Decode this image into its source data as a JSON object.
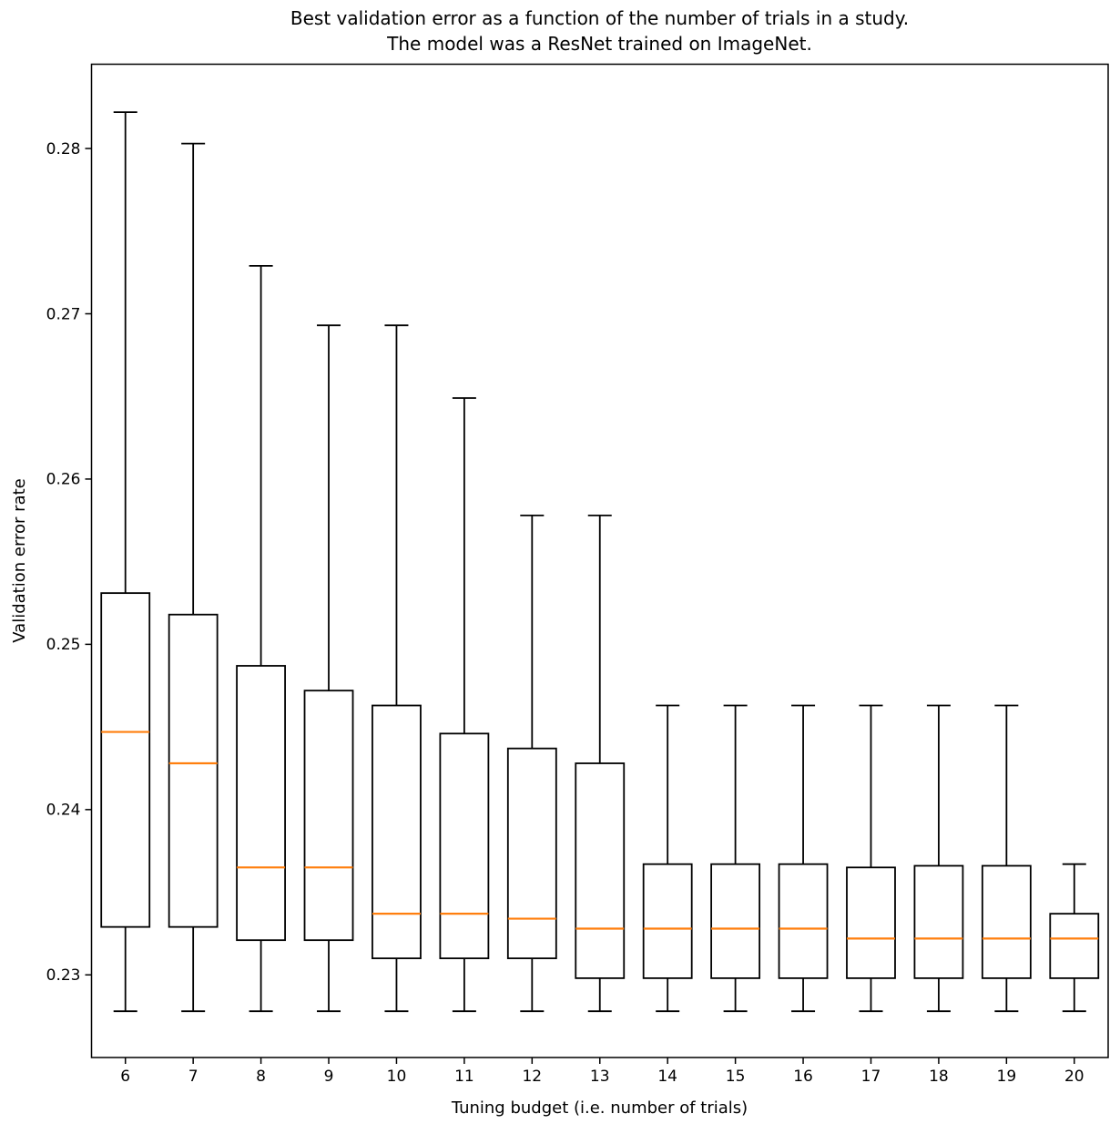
{
  "chart_data": {
    "type": "boxplot",
    "title_line1": "Best validation error as a function of the number of trials in a study.",
    "title_line2": "The model was a ResNet trained on ImageNet.",
    "xlabel": "Tuning budget (i.e. number of trials)",
    "ylabel": "Validation error rate",
    "categories": [
      "6",
      "7",
      "8",
      "9",
      "10",
      "11",
      "12",
      "13",
      "14",
      "15",
      "16",
      "17",
      "18",
      "19",
      "20"
    ],
    "yticks": [
      0.23,
      0.24,
      0.25,
      0.26,
      0.27,
      0.28
    ],
    "ylim": [
      0.225,
      0.2851
    ],
    "grid": false,
    "legend": "none",
    "colors": {
      "median": "#ff7f0e",
      "box_stroke": "#000000",
      "box_fill": "#ffffff",
      "spine": "#000000"
    },
    "boxes": [
      {
        "label": "6",
        "whislo": 0.2278,
        "q1": 0.2329,
        "med": 0.2447,
        "q3": 0.2531,
        "whishi": 0.2822
      },
      {
        "label": "7",
        "whislo": 0.2278,
        "q1": 0.2329,
        "med": 0.2428,
        "q3": 0.2518,
        "whishi": 0.2803
      },
      {
        "label": "8",
        "whislo": 0.2278,
        "q1": 0.2321,
        "med": 0.2365,
        "q3": 0.2487,
        "whishi": 0.2729
      },
      {
        "label": "9",
        "whislo": 0.2278,
        "q1": 0.2321,
        "med": 0.2365,
        "q3": 0.2472,
        "whishi": 0.2693
      },
      {
        "label": "10",
        "whislo": 0.2278,
        "q1": 0.231,
        "med": 0.2337,
        "q3": 0.2463,
        "whishi": 0.2693
      },
      {
        "label": "11",
        "whislo": 0.2278,
        "q1": 0.231,
        "med": 0.2337,
        "q3": 0.2446,
        "whishi": 0.2649
      },
      {
        "label": "12",
        "whislo": 0.2278,
        "q1": 0.231,
        "med": 0.2334,
        "q3": 0.2437,
        "whishi": 0.2578
      },
      {
        "label": "13",
        "whislo": 0.2278,
        "q1": 0.2298,
        "med": 0.2328,
        "q3": 0.2428,
        "whishi": 0.2578
      },
      {
        "label": "14",
        "whislo": 0.2278,
        "q1": 0.2298,
        "med": 0.2328,
        "q3": 0.2367,
        "whishi": 0.2463
      },
      {
        "label": "15",
        "whislo": 0.2278,
        "q1": 0.2298,
        "med": 0.2328,
        "q3": 0.2367,
        "whishi": 0.2463
      },
      {
        "label": "16",
        "whislo": 0.2278,
        "q1": 0.2298,
        "med": 0.2328,
        "q3": 0.2367,
        "whishi": 0.2463
      },
      {
        "label": "17",
        "whislo": 0.2278,
        "q1": 0.2298,
        "med": 0.2322,
        "q3": 0.2365,
        "whishi": 0.2463
      },
      {
        "label": "18",
        "whislo": 0.2278,
        "q1": 0.2298,
        "med": 0.2322,
        "q3": 0.2366,
        "whishi": 0.2463
      },
      {
        "label": "19",
        "whislo": 0.2278,
        "q1": 0.2298,
        "med": 0.2322,
        "q3": 0.2366,
        "whishi": 0.2463
      },
      {
        "label": "20",
        "whislo": 0.2278,
        "q1": 0.2298,
        "med": 0.2322,
        "q3": 0.2337,
        "whishi": 0.2367
      }
    ]
  }
}
